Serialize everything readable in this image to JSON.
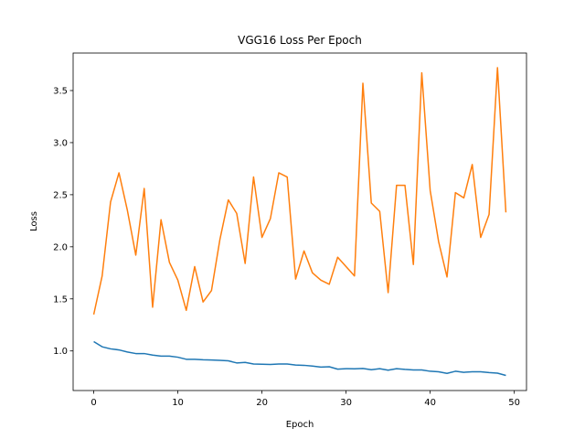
{
  "chart_data": {
    "type": "line",
    "title": "VGG16 Loss Per Epoch",
    "xlabel": "Epoch",
    "ylabel": "Loss",
    "xlim": [
      -2.45,
      51.45
    ],
    "ylim": [
      0.62,
      3.86
    ],
    "xticks": [
      0,
      10,
      20,
      30,
      40,
      50
    ],
    "yticks": [
      1.0,
      1.5,
      2.0,
      2.5,
      3.0,
      3.5
    ],
    "ytick_labels": [
      "1.0",
      "1.5",
      "2.0",
      "2.5",
      "3.0",
      "3.5"
    ],
    "grid": false,
    "legend": false,
    "x": [
      0,
      1,
      2,
      3,
      4,
      5,
      6,
      7,
      8,
      9,
      10,
      11,
      12,
      13,
      14,
      15,
      16,
      17,
      18,
      19,
      20,
      21,
      22,
      23,
      24,
      25,
      26,
      27,
      28,
      29,
      30,
      31,
      32,
      33,
      34,
      35,
      36,
      37,
      38,
      39,
      40,
      41,
      42,
      43,
      44,
      45,
      46,
      47,
      48,
      49
    ],
    "series": [
      {
        "color": "#1f77b4",
        "values": [
          1.09,
          1.04,
          1.02,
          1.01,
          0.99,
          0.975,
          0.975,
          0.96,
          0.95,
          0.95,
          0.94,
          0.92,
          0.92,
          0.915,
          0.913,
          0.91,
          0.905,
          0.885,
          0.89,
          0.875,
          0.872,
          0.87,
          0.875,
          0.875,
          0.865,
          0.862,
          0.855,
          0.845,
          0.848,
          0.825,
          0.83,
          0.828,
          0.832,
          0.82,
          0.83,
          0.815,
          0.83,
          0.823,
          0.818,
          0.818,
          0.805,
          0.8,
          0.785,
          0.805,
          0.795,
          0.8,
          0.8,
          0.792,
          0.787,
          0.765
        ]
      },
      {
        "color": "#ff7f0e",
        "values": [
          1.35,
          1.72,
          2.43,
          2.71,
          2.35,
          1.92,
          2.56,
          1.42,
          2.26,
          1.85,
          1.68,
          1.39,
          1.81,
          1.47,
          1.58,
          2.07,
          2.45,
          2.32,
          1.84,
          2.67,
          2.09,
          2.27,
          2.71,
          2.67,
          1.69,
          1.96,
          1.75,
          1.68,
          1.64,
          1.9,
          1.81,
          1.72,
          3.57,
          2.42,
          2.34,
          1.56,
          2.59,
          2.59,
          1.83,
          3.67,
          2.54,
          2.05,
          1.71,
          2.52,
          2.47,
          2.79,
          2.09,
          2.31,
          3.72,
          2.33
        ]
      }
    ]
  }
}
